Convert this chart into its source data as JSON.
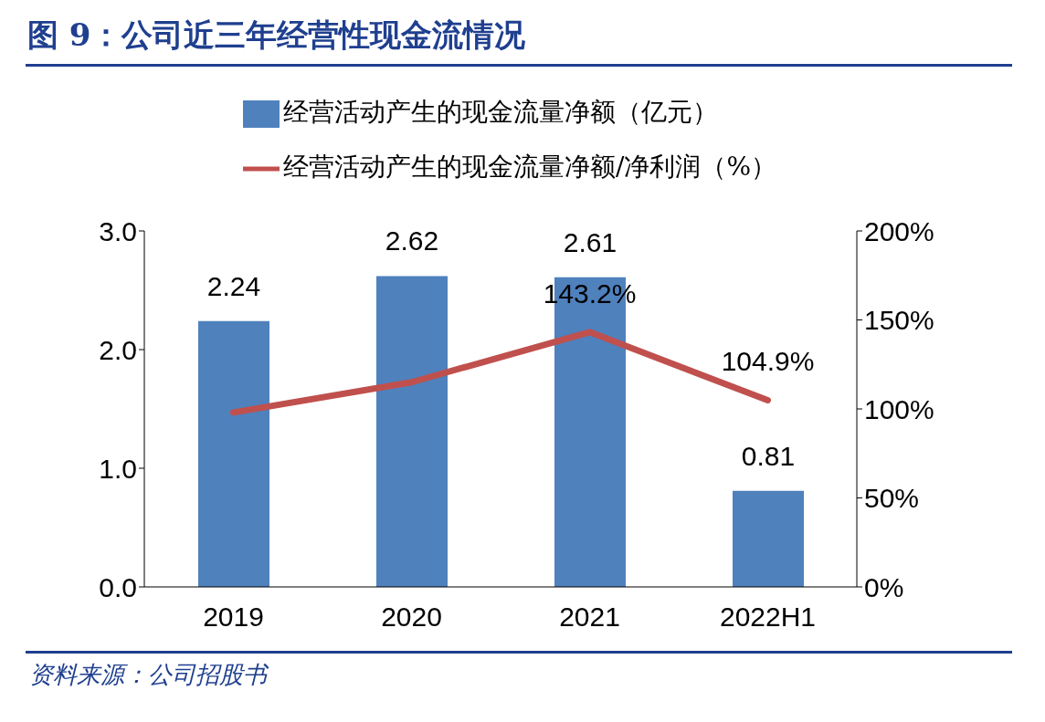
{
  "chart_data": {
    "type": "bar",
    "title": "图 9：公司近三年经营性现金流情况",
    "categories": [
      "2019",
      "2020",
      "2021",
      "2022H1"
    ],
    "series": [
      {
        "name": "经营活动产生的现金流量净额（亿元）",
        "color": "#4f81bd",
        "values": [
          2.24,
          2.62,
          2.61,
          0.81
        ],
        "value_labels": [
          "2.24",
          "2.62",
          "2.61",
          "0.81"
        ]
      },
      {
        "name": "经营活动产生的现金流量净额/净利润（%）",
        "type": "line",
        "axis": "y2",
        "color": "#c0504d",
        "values": [
          98,
          115,
          143.2,
          104.9
        ],
        "value_labels": [
          null,
          null,
          "143.2%",
          "104.9%"
        ]
      }
    ],
    "ylim": [
      0,
      3
    ],
    "yticks": [
      {
        "value": 0,
        "label": "0.0"
      },
      {
        "value": 1,
        "label": "1.0"
      },
      {
        "value": 2,
        "label": "2.0"
      },
      {
        "value": 3,
        "label": "3.0"
      }
    ],
    "y2lim": [
      0,
      200
    ],
    "y2ticks": [
      {
        "value": 0,
        "label": "0%"
      },
      {
        "value": 50,
        "label": "50%"
      },
      {
        "value": 100,
        "label": "100%"
      },
      {
        "value": 150,
        "label": "150%"
      },
      {
        "value": 200,
        "label": "200%"
      }
    ],
    "grid": false,
    "legend": "top",
    "marker": "none",
    "line_style": "solid",
    "annotations": [
      "资料来源：公司招股书"
    ]
  }
}
